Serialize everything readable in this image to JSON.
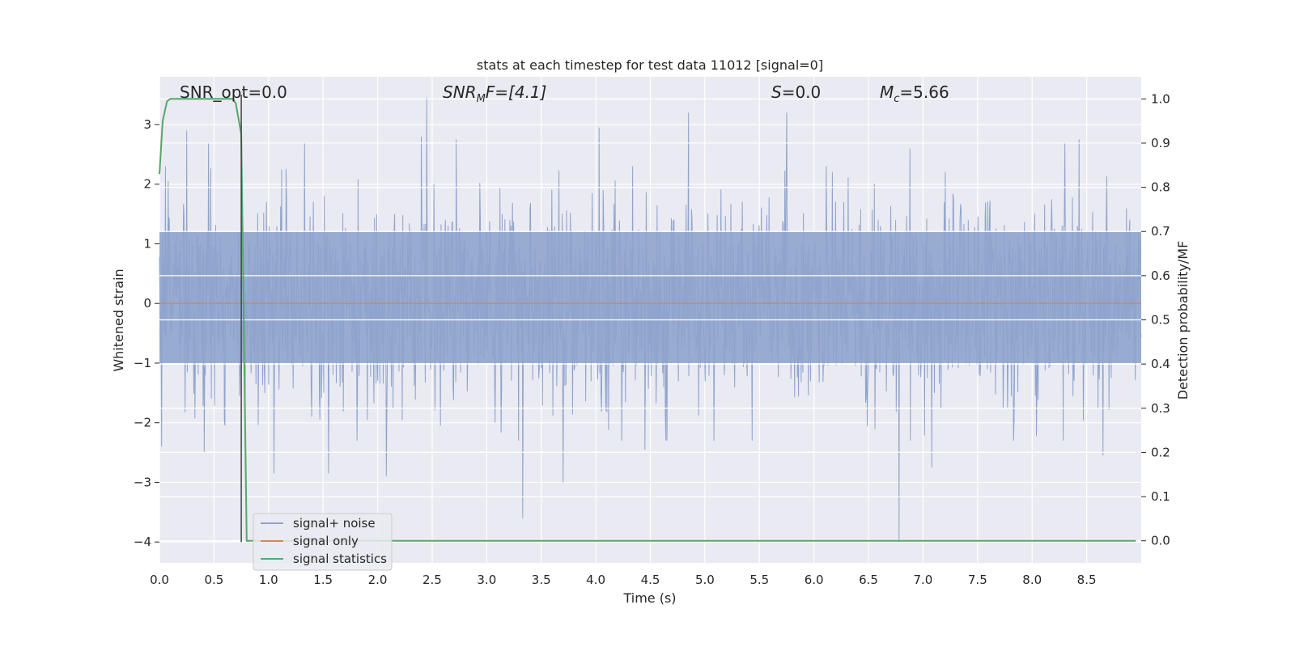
{
  "chart_data": {
    "type": "line",
    "title": "stats at each timestep for test data 11012 [signal=0]",
    "xlabel": "Time (s)",
    "ylabel": "Whitened strain",
    "y2label": "Detection probability/MF",
    "xlim": [
      0,
      9.0
    ],
    "ylim": [
      -4.35,
      3.8
    ],
    "y2lim": [
      -0.05,
      1.05
    ],
    "xticks": [
      "0.0",
      "0.5",
      "1.0",
      "1.5",
      "2.0",
      "2.5",
      "3.0",
      "3.5",
      "4.0",
      "4.5",
      "5.0",
      "5.5",
      "6.0",
      "6.5",
      "7.0",
      "7.5",
      "8.0",
      "8.5"
    ],
    "yticks": [
      "3",
      "2",
      "1",
      "0",
      "−1",
      "−2",
      "−3",
      "−4"
    ],
    "y2ticks": [
      "1.0",
      "0.9",
      "0.8",
      "0.7",
      "0.6",
      "0.5",
      "0.4",
      "0.3",
      "0.2",
      "0.1",
      "0.0"
    ],
    "grid": true,
    "legend_position": "lower-left",
    "annotations": {
      "snr_opt": "SNR_opt=0.0",
      "snr_mf_italic": "SNR",
      "snr_mf_sub": "M",
      "snr_mf_rest": "F=[4.1]",
      "s_italic": "S",
      "s_rest": "=0.0",
      "mc_italic": "M",
      "mc_sub": "c",
      "mc_rest": "=5.66"
    },
    "series": [
      {
        "name": "signal+ noise",
        "color": "#8fa4cc",
        "description_stats": {
          "x_start": 0.0,
          "x_end": 9.0,
          "n_samples": 1800,
          "core_band": [
            -1.0,
            1.2
          ],
          "peaks_high": [
            [
              0.08,
              2.05
            ],
            [
              0.25,
              2.9
            ],
            [
              0.45,
              2.7
            ],
            [
              1.33,
              2.7
            ],
            [
              2.45,
              3.45
            ],
            [
              2.4,
              2.8
            ],
            [
              2.72,
              2.75
            ],
            [
              4.03,
              2.95
            ],
            [
              4.85,
              3.2
            ],
            [
              5.75,
              3.2
            ],
            [
              6.88,
              2.6
            ],
            [
              8.3,
              2.7
            ],
            [
              8.43,
              2.75
            ]
          ],
          "peaks_low": [
            [
              0.02,
              -2.4
            ],
            [
              0.41,
              -2.5
            ],
            [
              1.05,
              -2.85
            ],
            [
              1.55,
              -2.85
            ],
            [
              2.08,
              -2.9
            ],
            [
              3.33,
              -3.6
            ],
            [
              3.7,
              -3.0
            ],
            [
              4.45,
              -2.45
            ],
            [
              6.78,
              -4.0
            ],
            [
              7.08,
              -2.75
            ],
            [
              8.65,
              -2.55
            ]
          ]
        }
      },
      {
        "name": "signal only",
        "color": "#dd8452",
        "x": [
          0.0,
          9.0
        ],
        "y": [
          0.0,
          0.0
        ]
      },
      {
        "name": "signal statistics",
        "color": "#55a868",
        "axis": "right",
        "x": [
          0.0,
          0.03,
          0.07,
          0.1,
          0.2,
          0.3,
          0.4,
          0.5,
          0.6,
          0.67,
          0.7,
          0.75,
          0.8,
          1.0,
          2.0,
          4.0,
          6.0,
          8.0,
          8.95
        ],
        "y": [
          0.83,
          0.95,
          0.995,
          1.0,
          1.0,
          1.0,
          1.0,
          1.0,
          1.0,
          1.0,
          0.99,
          0.92,
          0.0,
          0.0,
          0.0,
          0.0,
          0.0,
          0.0,
          0.0
        ]
      }
    ],
    "marker_line": {
      "x": 0.75,
      "y_from": -4.0,
      "y_to": 3.5,
      "color": "#444444"
    }
  }
}
